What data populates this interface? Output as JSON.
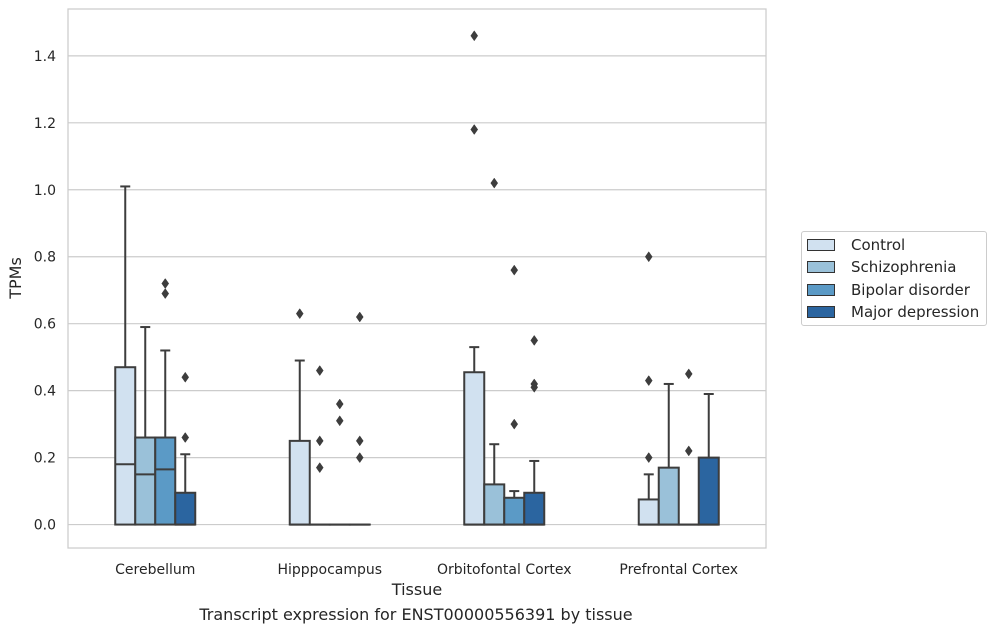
{
  "chart_data": {
    "type": "box",
    "title": "",
    "caption": "Transcript expression for ENST00000556391 by tissue",
    "xlabel": "Tissue",
    "ylabel": "TPMs",
    "ylim": [
      -0.07,
      1.54
    ],
    "yticks": [
      0.0,
      0.2,
      0.4,
      0.6,
      0.8,
      1.0,
      1.2,
      1.4
    ],
    "ytick_labels": [
      "0.0",
      "0.2",
      "0.4",
      "0.6",
      "0.8",
      "1.0",
      "1.2",
      "1.4"
    ],
    "grid": "horizontal",
    "legend_position": "right",
    "categories": [
      "Cerebellum",
      "Hipppocampus",
      "Orbitofontal Cortex",
      "Prefrontal Cortex"
    ],
    "series": [
      {
        "name": "Control",
        "color": "#d1e1f0",
        "boxes": [
          {
            "q1": 0.0,
            "median": 0.18,
            "q3": 0.47,
            "whisker_low": 0.0,
            "whisker_high": 1.01,
            "outliers": []
          },
          {
            "q1": 0.0,
            "median": 0.0,
            "q3": 0.25,
            "whisker_low": 0.0,
            "whisker_high": 0.49,
            "outliers": [
              0.63
            ]
          },
          {
            "q1": 0.0,
            "median": 0.0,
            "q3": 0.455,
            "whisker_low": 0.0,
            "whisker_high": 0.53,
            "outliers": [
              1.46,
              1.18
            ]
          },
          {
            "q1": 0.0,
            "median": 0.0,
            "q3": 0.075,
            "whisker_low": 0.0,
            "whisker_high": 0.15,
            "outliers": [
              0.8,
              0.43,
              0.2
            ]
          }
        ]
      },
      {
        "name": "Schizophrenia",
        "color": "#9ac1d9",
        "boxes": [
          {
            "q1": 0.0,
            "median": 0.15,
            "q3": 0.26,
            "whisker_low": 0.0,
            "whisker_high": 0.59,
            "outliers": []
          },
          {
            "q1": 0.0,
            "median": 0.0,
            "q3": 0.0,
            "whisker_low": 0.0,
            "whisker_high": 0.0,
            "outliers": [
              0.46,
              0.25,
              0.17
            ]
          },
          {
            "q1": 0.0,
            "median": 0.0,
            "q3": 0.12,
            "whisker_low": 0.0,
            "whisker_high": 0.24,
            "outliers": [
              1.02
            ]
          },
          {
            "q1": 0.0,
            "median": 0.0,
            "q3": 0.17,
            "whisker_low": 0.0,
            "whisker_high": 0.42,
            "outliers": []
          }
        ]
      },
      {
        "name": "Bipolar disorder",
        "color": "#5b9ac6",
        "boxes": [
          {
            "q1": 0.0,
            "median": 0.165,
            "q3": 0.26,
            "whisker_low": 0.0,
            "whisker_high": 0.52,
            "outliers": [
              0.72,
              0.69
            ]
          },
          {
            "q1": 0.0,
            "median": 0.0,
            "q3": 0.0,
            "whisker_low": 0.0,
            "whisker_high": 0.0,
            "outliers": [
              0.36,
              0.31
            ]
          },
          {
            "q1": 0.0,
            "median": 0.0,
            "q3": 0.08,
            "whisker_low": 0.0,
            "whisker_high": 0.1,
            "outliers": [
              0.76,
              0.3
            ]
          },
          {
            "q1": 0.0,
            "median": 0.0,
            "q3": 0.0,
            "whisker_low": 0.0,
            "whisker_high": 0.0,
            "outliers": [
              0.45,
              0.22
            ]
          }
        ]
      },
      {
        "name": "Major depression",
        "color": "#2b65a0",
        "boxes": [
          {
            "q1": 0.0,
            "median": 0.0,
            "q3": 0.095,
            "whisker_low": 0.0,
            "whisker_high": 0.21,
            "outliers": [
              0.44,
              0.26
            ]
          },
          {
            "q1": 0.0,
            "median": 0.0,
            "q3": 0.0,
            "whisker_low": 0.0,
            "whisker_high": 0.0,
            "outliers": [
              0.62,
              0.25,
              0.2
            ]
          },
          {
            "q1": 0.0,
            "median": 0.0,
            "q3": 0.095,
            "whisker_low": 0.0,
            "whisker_high": 0.19,
            "outliers": [
              0.55,
              0.42,
              0.41
            ]
          },
          {
            "q1": 0.0,
            "median": 0.0,
            "q3": 0.2,
            "whisker_low": 0.0,
            "whisker_high": 0.39,
            "outliers": []
          }
        ]
      }
    ]
  }
}
